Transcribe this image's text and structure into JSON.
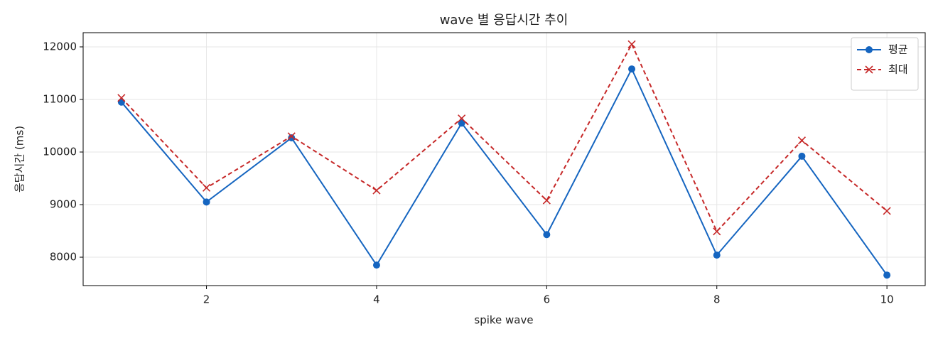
{
  "chart_data": {
    "type": "line",
    "title": "wave 별 응답시간 추이",
    "xlabel": "spike wave",
    "ylabel": "응답시간 (ms)",
    "x": [
      1,
      2,
      3,
      4,
      5,
      6,
      7,
      8,
      9,
      10
    ],
    "series": [
      {
        "name": "평균",
        "color": "#1565c0",
        "marker": "o",
        "linestyle": "solid",
        "values": [
          10950,
          9050,
          10270,
          7850,
          10550,
          8430,
          11580,
          8040,
          9920,
          7660
        ]
      },
      {
        "name": "최대",
        "color": "#c62828",
        "marker": "x",
        "linestyle": "dashed",
        "values": [
          11030,
          9320,
          10300,
          9270,
          10640,
          9080,
          12050,
          8490,
          10220,
          8880
        ]
      }
    ],
    "xlim": [
      0.55,
      10.45
    ],
    "ylim": [
      7460,
      12270
    ],
    "xticks": [
      2,
      4,
      6,
      8,
      10
    ],
    "yticks": [
      8000,
      9000,
      10000,
      11000,
      12000
    ],
    "grid": true,
    "legend": "upper right"
  }
}
